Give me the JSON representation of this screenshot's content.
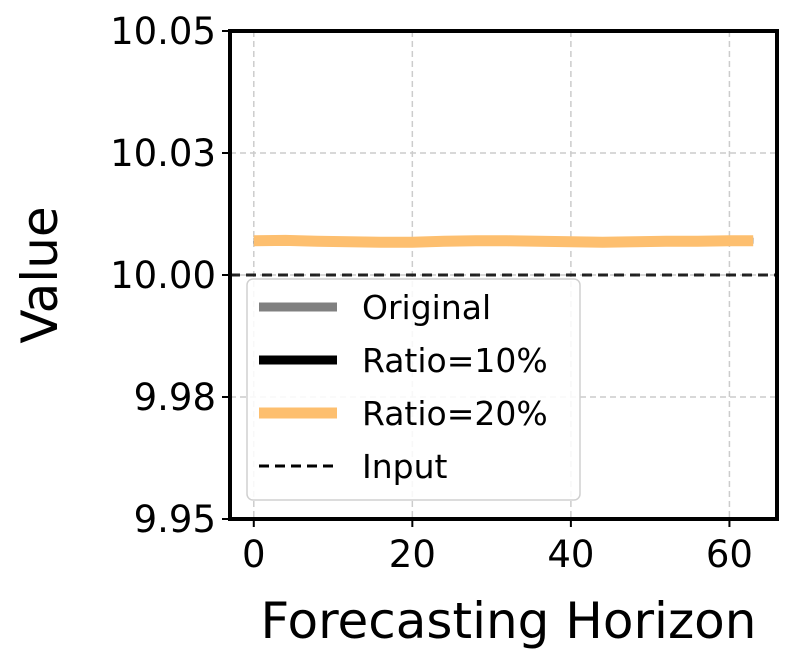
{
  "chart_data": {
    "type": "line",
    "xlabel": "Forecasting Horizon",
    "ylabel": "Value",
    "xlim": [
      -3,
      66
    ],
    "ylim": [
      9.95,
      10.05
    ],
    "xticks": [
      0,
      20,
      40,
      60
    ],
    "xtick_labels": [
      "0",
      "20",
      "40",
      "60"
    ],
    "yticks": [
      9.95,
      9.975,
      10.0,
      10.025,
      10.05
    ],
    "ytick_labels": [
      "9.95",
      "9.98",
      "10.00",
      "10.03",
      "10.05"
    ],
    "grid": true,
    "legend_position": "lower-left",
    "x": [
      0,
      4,
      8,
      12,
      16,
      20,
      24,
      28,
      32,
      36,
      40,
      44,
      48,
      52,
      56,
      60,
      63
    ],
    "series": [
      {
        "name": "Original",
        "color": "#808080",
        "values": [
          10.007,
          10.0072,
          10.0071,
          10.0069,
          10.0068,
          10.0068,
          10.007,
          10.0071,
          10.0071,
          10.007,
          10.0069,
          10.0069,
          10.007,
          10.0071,
          10.007,
          10.007,
          10.007
        ]
      },
      {
        "name": "Ratio=10%",
        "color": "#000000",
        "values": [
          10.007,
          10.0071,
          10.007,
          10.0069,
          10.0069,
          10.0068,
          10.007,
          10.0071,
          10.0071,
          10.007,
          10.0069,
          10.007,
          10.0071,
          10.007,
          10.007,
          10.0071,
          10.007
        ]
      },
      {
        "name": "Ratio=20%",
        "color": "#fdbf6f",
        "values": [
          10.007,
          10.0071,
          10.0069,
          10.0068,
          10.0067,
          10.0067,
          10.0069,
          10.007,
          10.007,
          10.0069,
          10.0068,
          10.0067,
          10.0068,
          10.0069,
          10.0069,
          10.007,
          10.007
        ]
      },
      {
        "name": "Input",
        "color": "#000000",
        "dashed": true,
        "values": [
          10.0,
          10.0,
          10.0,
          10.0,
          10.0,
          10.0,
          10.0,
          10.0,
          10.0,
          10.0,
          10.0,
          10.0,
          10.0,
          10.0,
          10.0,
          10.0,
          10.0
        ]
      }
    ]
  }
}
